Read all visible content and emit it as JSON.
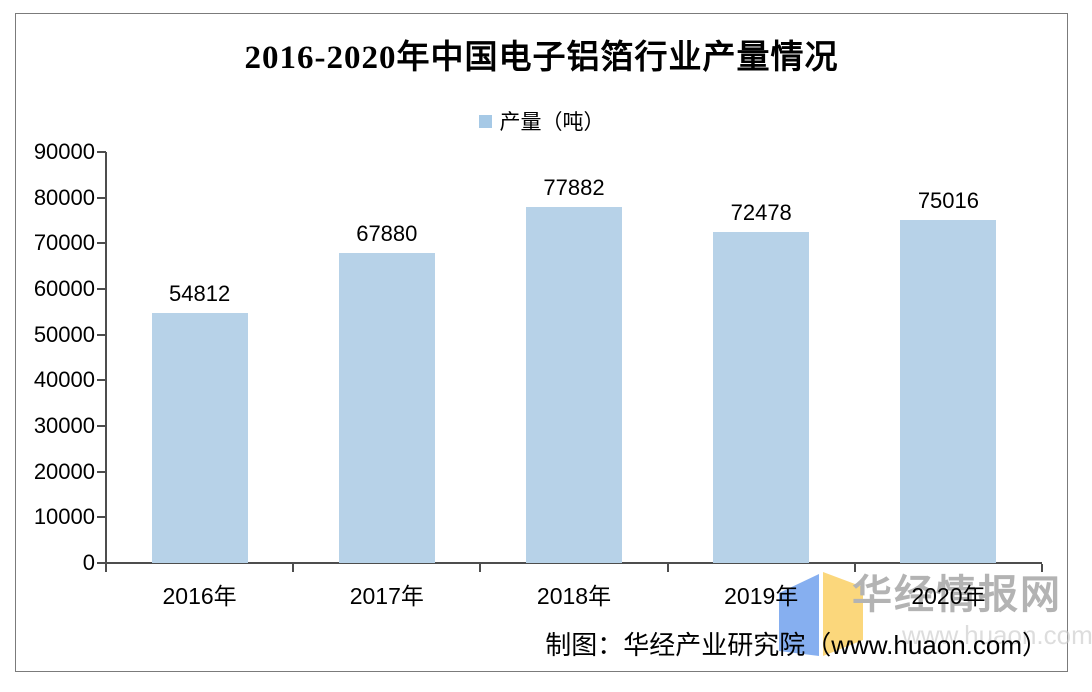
{
  "chart_data": {
    "type": "bar",
    "title": "2016-2020年中国电子铝箔行业产量情况",
    "legend": {
      "label": "产量（吨）",
      "swatch_color": "#a6c9e6",
      "position": "top-center"
    },
    "categories": [
      "2016年",
      "2017年",
      "2018年",
      "2019年",
      "2020年"
    ],
    "series": [
      {
        "name": "产量（吨）",
        "values": [
          54812,
          67880,
          77882,
          72478,
          75016
        ]
      }
    ],
    "values": [
      54812,
      67880,
      77882,
      72478,
      75016
    ],
    "value_labels": [
      "54812",
      "67880",
      "77882",
      "72478",
      "75016"
    ],
    "xlabel": "",
    "ylabel": "",
    "ylim": [
      0,
      90000
    ],
    "yticks": [
      0,
      10000,
      20000,
      30000,
      40000,
      50000,
      60000,
      70000,
      80000,
      90000
    ],
    "ytick_labels": [
      "0",
      "10000",
      "20000",
      "30000",
      "40000",
      "50000",
      "60000",
      "70000",
      "80000",
      "90000"
    ],
    "grid": false,
    "bar_color": "#b7d2e8",
    "axis_color": "#4d4d4d"
  },
  "footer": {
    "attribution": "制图：华经产业研究院（www.huaon.com）"
  },
  "watermark": {
    "brand_text": "华经情报网",
    "url_text": "www.huaon.com",
    "logo": "huajing-open-book-logo",
    "logo_blue": "#86aff0",
    "logo_yellow": "#fbd77c",
    "text_color": "#b3b3b3"
  }
}
